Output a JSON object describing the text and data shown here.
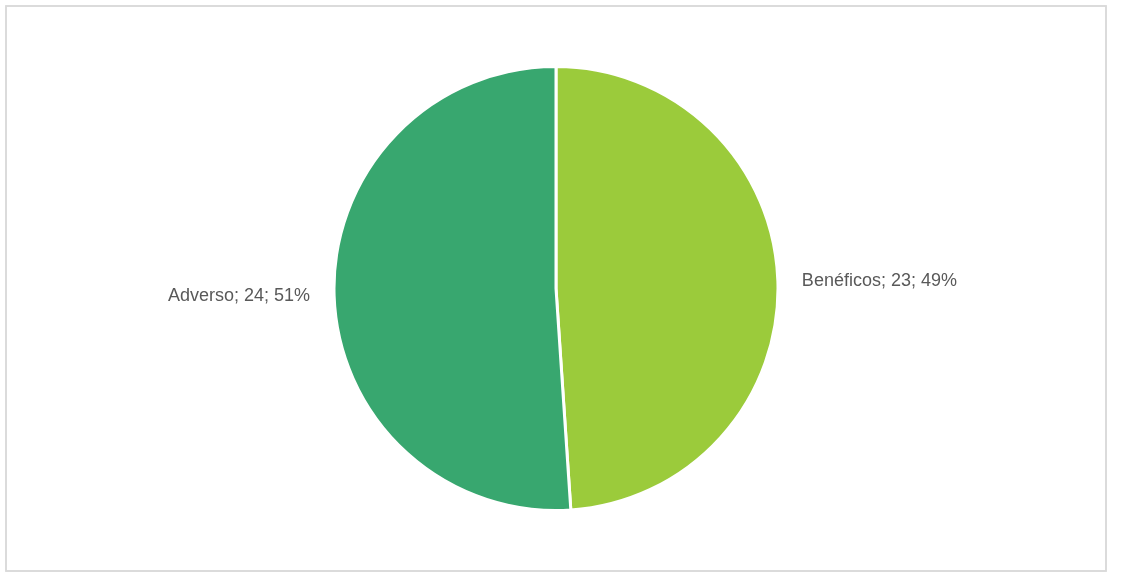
{
  "chart_data": {
    "type": "pie",
    "categories": [
      "Benéficos",
      "Adverso"
    ],
    "values": [
      23,
      24
    ],
    "colors": [
      "#9bcb3b",
      "#38a76f"
    ],
    "value_labels": [
      "23; 49%",
      "24; 51%"
    ],
    "legend": false
  }
}
